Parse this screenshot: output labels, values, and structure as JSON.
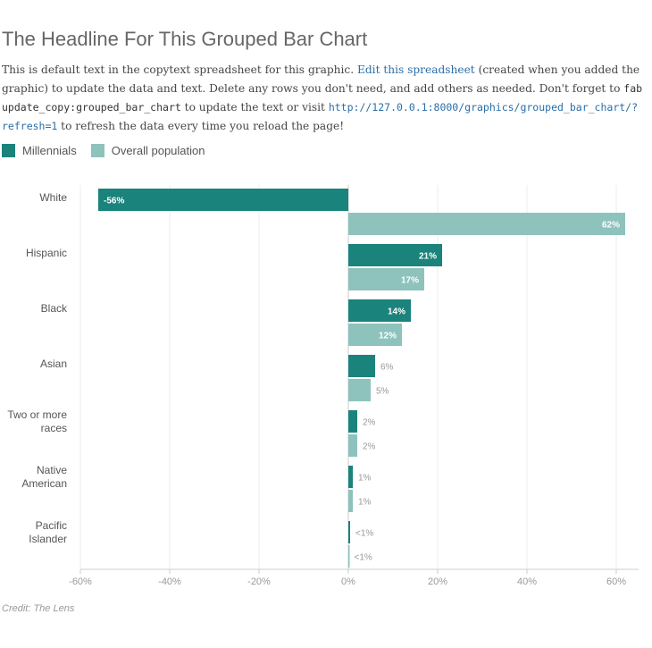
{
  "header": {
    "title": "The Headline For This Grouped Bar Chart"
  },
  "intro": {
    "text_1": "This is default text in the copytext spreadsheet for this graphic. ",
    "link_1": "Edit this spreadsheet",
    "text_2": " (created when you added the graphic) to update the data and text. Delete any rows you don't need, and add others as needed. Don't forget to ",
    "command": "fab update_copy:grouped_bar_chart",
    "text_3": " to update the text or visit ",
    "link_2": "http://127.0.0.1:8000/graphics/grouped_bar_chart/?refresh=1",
    "text_4": " to refresh the data every time you reload the page!"
  },
  "legend": [
    {
      "label": "Millennials",
      "color": "#1a837b"
    },
    {
      "label": "Overall population",
      "color": "#8ec2bd"
    }
  ],
  "chart_data": {
    "type": "bar",
    "orientation": "horizontal",
    "categories": [
      "White",
      "Hispanic",
      "Black",
      "Asian",
      "Two or more races",
      "Native American",
      "Pacific Islander"
    ],
    "category_lines": [
      [
        "White"
      ],
      [
        "Hispanic"
      ],
      [
        "Black"
      ],
      [
        "Asian"
      ],
      [
        "Two or more",
        "races"
      ],
      [
        "Native",
        "American"
      ],
      [
        "Pacific",
        "Islander"
      ]
    ],
    "series": [
      {
        "name": "Millennials",
        "color": "#1a837b",
        "values": [
          -56,
          21,
          14,
          6,
          2,
          1,
          0.4
        ],
        "labels": [
          "-56%",
          "21%",
          "14%",
          "6%",
          "2%",
          "1%",
          "<1%"
        ]
      },
      {
        "name": "Overall population",
        "color": "#8ec2bd",
        "values": [
          62,
          17,
          12,
          5,
          2,
          1,
          0.1
        ],
        "labels": [
          "62%",
          "17%",
          "12%",
          "5%",
          "2%",
          "1%",
          "<1%"
        ]
      }
    ],
    "xlim": [
      -60,
      65
    ],
    "ticks": [
      -60,
      -40,
      -20,
      0,
      20,
      40,
      60
    ],
    "tick_labels": [
      "-60%",
      "-40%",
      "-20%",
      "0%",
      "20%",
      "40%",
      "60%"
    ],
    "grid": true,
    "legend_position": "top-left"
  },
  "footer": {
    "credit": "Credit: The Lens"
  }
}
